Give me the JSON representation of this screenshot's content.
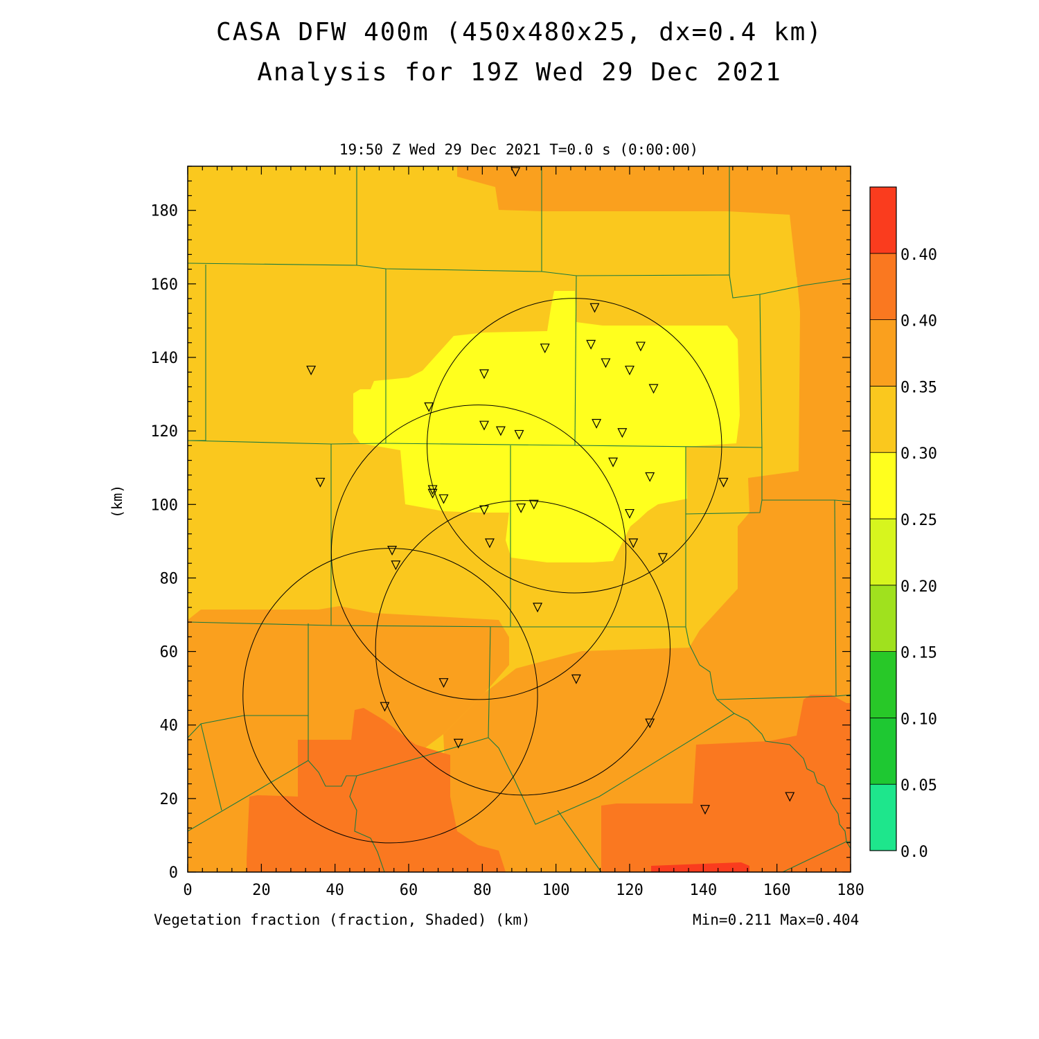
{
  "title": {
    "line1": "CASA DFW 400m (450x480x25, dx=0.4 km)",
    "line2": "Analysis for 19Z Wed 29 Dec 2021"
  },
  "subtitle": "19:50 Z Wed 29 Dec 2021    T=0.0 s (0:00:00)",
  "footer": {
    "left": "Vegetation fraction (fraction, Shaded)  (km)",
    "right": "Min=0.211 Max=0.404"
  },
  "y_axis_label": "(km)",
  "chart_data": {
    "type": "heatmap",
    "x_ticks": [
      0,
      20,
      40,
      60,
      80,
      100,
      120,
      140,
      160,
      180
    ],
    "y_ticks": [
      0,
      20,
      40,
      60,
      80,
      100,
      120,
      140,
      160,
      180
    ],
    "xlim": [
      0,
      180
    ],
    "ylim": [
      0,
      192
    ],
    "colorbar": {
      "labels": [
        "0.0",
        "0.05",
        "0.10",
        "0.15",
        "0.20",
        "0.25",
        "0.30",
        "0.35",
        "0.40",
        "0.40"
      ],
      "colors": [
        "#1ee68c",
        "#1ec832",
        "#28c828",
        "#a0e11e",
        "#d7f51e",
        "#ffff1e",
        "#fac81e",
        "#faa01e",
        "#fa7820",
        "#fa3c1e"
      ]
    },
    "stations": [
      [
        89,
        190.5
      ],
      [
        110.5,
        153.5
      ],
      [
        97,
        142.5
      ],
      [
        109.5,
        143.5
      ],
      [
        123,
        143
      ],
      [
        113.5,
        138.5
      ],
      [
        120,
        136.5
      ],
      [
        80.5,
        135.5
      ],
      [
        33.5,
        136.5
      ],
      [
        126.5,
        131.5
      ],
      [
        65.5,
        126.5
      ],
      [
        80.5,
        121.5
      ],
      [
        85,
        120
      ],
      [
        90,
        119
      ],
      [
        111,
        122
      ],
      [
        118,
        119.5
      ],
      [
        115.5,
        111.5
      ],
      [
        125.5,
        107.5
      ],
      [
        145.5,
        106
      ],
      [
        36,
        106
      ],
      [
        66.5,
        104
      ],
      [
        66.5,
        103
      ],
      [
        69.5,
        101.5
      ],
      [
        94,
        100
      ],
      [
        90.5,
        99
      ],
      [
        80.5,
        98.5
      ],
      [
        120,
        97.5
      ],
      [
        82,
        89.5
      ],
      [
        121,
        89.5
      ],
      [
        55.5,
        87.5
      ],
      [
        129,
        85.5
      ],
      [
        56.5,
        83.5
      ],
      [
        95,
        72
      ],
      [
        105.5,
        52.5
      ],
      [
        69.5,
        51.5
      ],
      [
        53.5,
        45
      ],
      [
        125.5,
        40.5
      ],
      [
        73.5,
        35
      ],
      [
        163.5,
        20.5
      ],
      [
        140.5,
        17
      ]
    ],
    "radar_rings": [
      {
        "center": [
          105,
          116
        ],
        "radius": 40
      },
      {
        "center": [
          79,
          87
        ],
        "radius": 40
      },
      {
        "center": [
          91,
          61
        ],
        "radius": 40
      },
      {
        "center": [
          55,
          48
        ],
        "radius": 40
      }
    ]
  }
}
